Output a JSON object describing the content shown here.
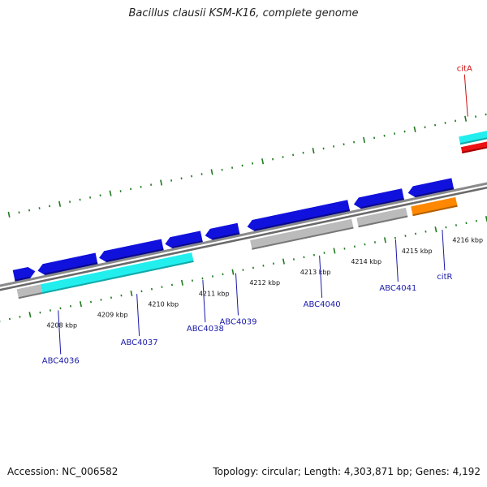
{
  "title": "Bacillus clausii KSM-K16, complete genome",
  "footer": {
    "accession": "Accession: NC_006582",
    "info": "Topology: circular; Length: 4,303,871 bp; Genes: 4,192"
  },
  "colors": {
    "background": "#ffffff",
    "backbone": "#888888",
    "dots": "#1f7a1f",
    "tick_label": "#111111",
    "gene_blue": "#1111dd",
    "cyan": "#22eeee",
    "gray": "#bbbbbb",
    "red": "#ee1111",
    "orange": "#ff8800",
    "label_blue": "#1a1aaa",
    "label_red": "#cc1111"
  },
  "scale": {
    "unit": "kbp",
    "ticks": [
      {
        "value": 4208,
        "label": "4208 kbp"
      },
      {
        "value": 4209,
        "label": "4209 kbp"
      },
      {
        "value": 4210,
        "label": "4210 kbp"
      },
      {
        "value": 4211,
        "label": "4211 kbp"
      },
      {
        "value": 4212,
        "label": "4212 kbp"
      },
      {
        "value": 4213,
        "label": "4213 kbp"
      },
      {
        "value": 4214,
        "label": "4214 kbp"
      },
      {
        "value": 4215,
        "label": "4215 kbp"
      },
      {
        "value": 4216,
        "label": "4216 kbp"
      }
    ]
  },
  "features": [
    {
      "name": "blue-gene-1",
      "track": "forward-inner",
      "color": "blue",
      "start": 4207.35,
      "end": 4207.77,
      "arrow": "end"
    },
    {
      "name": "blue-gene-2",
      "track": "forward-inner",
      "color": "blue",
      "start": 4207.82,
      "end": 4208.98,
      "arrow": "start"
    },
    {
      "name": "blue-gene-3",
      "track": "forward-inner",
      "color": "blue",
      "start": 4209.03,
      "end": 4210.28,
      "arrow": "start"
    },
    {
      "name": "blue-gene-4",
      "track": "forward-inner",
      "color": "blue",
      "start": 4210.33,
      "end": 4211.05,
      "arrow": "start"
    },
    {
      "name": "blue-gene-5",
      "track": "forward-inner",
      "color": "blue",
      "start": 4211.12,
      "end": 4211.78,
      "arrow": "start"
    },
    {
      "name": "blue-gene-6",
      "track": "forward-inner",
      "color": "blue",
      "start": 4211.95,
      "end": 4213.95,
      "arrow": "start"
    },
    {
      "name": "blue-gene-7",
      "track": "forward-inner",
      "color": "blue",
      "start": 4214.05,
      "end": 4215.02,
      "arrow": "start"
    },
    {
      "name": "blue-gene-8",
      "track": "forward-inner",
      "color": "blue",
      "start": 4215.12,
      "end": 4216.0,
      "arrow": "start"
    },
    {
      "name": "gray-cds-1",
      "track": "reverse-inner",
      "color": "gray",
      "start": 4207.35,
      "end": 4207.82,
      "arrow": "none"
    },
    {
      "name": "cyan-cds-1",
      "track": "reverse-inner",
      "color": "cyan",
      "start": 4207.82,
      "end": 4210.8,
      "arrow": "none"
    },
    {
      "name": "gray-cds-2",
      "track": "reverse-inner",
      "color": "gray",
      "start": 4211.95,
      "end": 4213.95,
      "arrow": "none"
    },
    {
      "name": "gray-cds-3",
      "track": "reverse-inner",
      "color": "gray",
      "start": 4214.05,
      "end": 4215.02,
      "arrow": "none"
    },
    {
      "name": "orange-cds-citR",
      "track": "reverse-inner",
      "color": "orange",
      "start": 4215.12,
      "end": 4216.0,
      "arrow": "none"
    },
    {
      "name": "cyan-cds-citA",
      "track": "forward-outer",
      "color": "cyan",
      "start": 4216.3,
      "end": 4217.0,
      "arrow": "none"
    },
    {
      "name": "red-gene-citA",
      "track": "forward-mid",
      "color": "red",
      "start": 4216.3,
      "end": 4217.0,
      "arrow": "none"
    }
  ],
  "gene_labels": [
    {
      "name": "ABC4036",
      "pos": 4208.05,
      "side": "below",
      "color": "blue",
      "drop": 54
    },
    {
      "name": "ABC4037",
      "pos": 4209.6,
      "side": "below",
      "color": "blue",
      "drop": 52
    },
    {
      "name": "ABC4038",
      "pos": 4210.9,
      "side": "below",
      "color": "blue",
      "drop": 52
    },
    {
      "name": "ABC4039",
      "pos": 4211.55,
      "side": "below",
      "color": "blue",
      "drop": 52
    },
    {
      "name": "ABC4040",
      "pos": 4213.2,
      "side": "below",
      "color": "blue",
      "drop": 52
    },
    {
      "name": "ABC4041",
      "pos": 4214.7,
      "side": "below",
      "color": "blue",
      "drop": 52
    },
    {
      "name": "citR",
      "pos": 4215.62,
      "side": "below",
      "color": "blue",
      "drop": 50
    },
    {
      "name": "citA",
      "pos": 4216.55,
      "side": "above",
      "color": "red",
      "drop": 52
    }
  ]
}
